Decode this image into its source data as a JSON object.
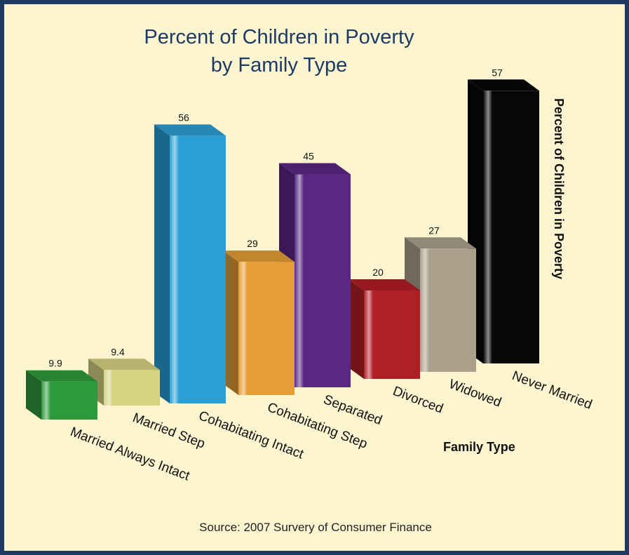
{
  "chart_data": {
    "type": "bar",
    "title": "Percent of Children in Poverty",
    "subtitle": "by Family Type",
    "xlabel": "Family Type",
    "ylabel": "Percent of Children in Poverty",
    "source": "Source: 2007 Survery of Consumer Finance",
    "categories": [
      "Married Always Intact",
      "Married Step",
      "Cohabitating Intact",
      "Cohabitating Step",
      "Separated",
      "Divorced",
      "Widowed",
      "Never Married"
    ],
    "values": [
      9.9,
      9.4,
      56,
      29,
      45,
      20,
      27,
      57
    ],
    "value_labels": [
      "9.9",
      "9.4",
      "56",
      "29",
      "45",
      "20",
      "27",
      "57"
    ],
    "colors": [
      "#2f9a3c",
      "#d6d282",
      "#2a9fd6",
      "#e59d35",
      "#5a2784",
      "#b01f25",
      "#aaa08c",
      "#070707"
    ],
    "background": "#fdf5d0",
    "border_color": "#1d3a63",
    "legend": "none",
    "grid": false
  }
}
